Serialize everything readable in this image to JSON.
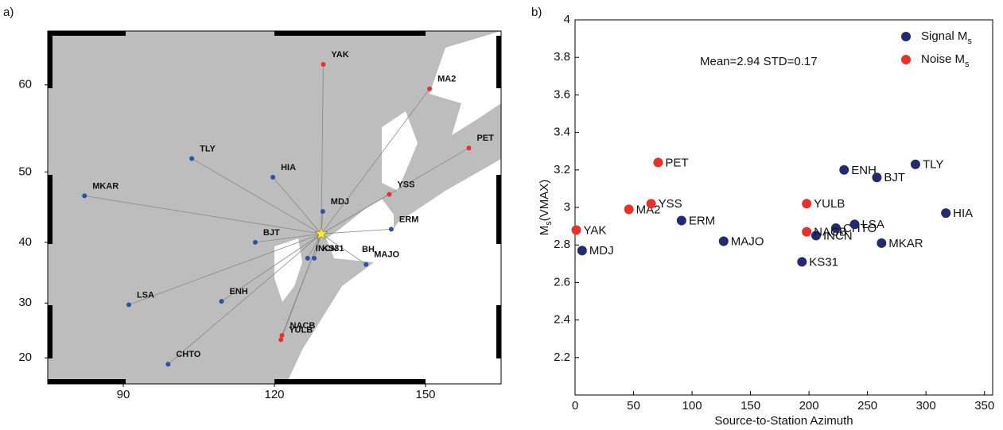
{
  "chart_data": [
    {
      "type": "map",
      "panel": "a)",
      "projection": "mercator",
      "xlim": [
        75,
        165
      ],
      "ylim": [
        15,
        65
      ],
      "xticks": [
        90,
        120,
        150
      ],
      "yticks": [
        20,
        30,
        40,
        50,
        60
      ],
      "source": {
        "lon": 129.3,
        "lat": 41.3,
        "color": "#f4e84a"
      },
      "stations": [
        {
          "name": "YAK",
          "lon": 129.7,
          "lat": 62.0,
          "color": "#e8312a"
        },
        {
          "name": "MA2",
          "lon": 150.8,
          "lat": 59.6,
          "color": "#e8312a"
        },
        {
          "name": "PET",
          "lon": 158.6,
          "lat": 53.0,
          "color": "#e8312a"
        },
        {
          "name": "TLY",
          "lon": 103.6,
          "lat": 51.7,
          "color": "#2f4fa8"
        },
        {
          "name": "HIA",
          "lon": 119.7,
          "lat": 49.3,
          "color": "#2f4fa8"
        },
        {
          "name": "MKAR",
          "lon": 82.3,
          "lat": 46.8,
          "color": "#2f4fa8"
        },
        {
          "name": "YSS",
          "lon": 142.8,
          "lat": 47.0,
          "color": "#e8312a"
        },
        {
          "name": "MDJ",
          "lon": 129.6,
          "lat": 44.6,
          "color": "#2f4fa8"
        },
        {
          "name": "ERM",
          "lon": 143.2,
          "lat": 42.0,
          "color": "#2f4fa8"
        },
        {
          "name": "BJT",
          "lon": 116.2,
          "lat": 40.0,
          "color": "#2f4fa8"
        },
        {
          "name": "INCN",
          "lon": 126.6,
          "lat": 37.5,
          "color": "#2f4fa8"
        },
        {
          "name": "KS31",
          "lon": 127.9,
          "lat": 37.5,
          "color": "#2f4fa8"
        },
        {
          "name": "MAJO",
          "lon": 138.2,
          "lat": 36.5,
          "color": "#2f4fa8"
        },
        {
          "name": "LSA",
          "lon": 91.1,
          "lat": 29.7,
          "color": "#2f4fa8"
        },
        {
          "name": "ENH",
          "lon": 109.5,
          "lat": 30.3,
          "color": "#2f4fa8"
        },
        {
          "name": "CHTO",
          "lon": 98.9,
          "lat": 18.8,
          "color": "#2f4fa8"
        },
        {
          "name": "NACB",
          "lon": 121.5,
          "lat": 24.2,
          "color": "#e8312a"
        },
        {
          "name": "YULB",
          "lon": 121.3,
          "lat": 23.4,
          "color": "#e8312a"
        }
      ],
      "annotation": "BH"
    },
    {
      "type": "scatter",
      "panel": "b)",
      "xlabel": "Source-to-Station Azimuth",
      "ylabel": [
        "M",
        "s",
        "(VMAX)"
      ],
      "annotation": "Mean=2.94 STD=0.17",
      "xlim": [
        0,
        357
      ],
      "ylim": [
        2,
        4
      ],
      "xticks": [
        0,
        50,
        100,
        150,
        200,
        250,
        300,
        350
      ],
      "yticks": [
        2.2,
        2.4,
        2.6,
        2.8,
        3,
        3.2,
        3.4,
        3.6,
        3.8,
        4
      ],
      "legend": "top-right",
      "series": [
        {
          "name": "Signal M",
          "name_sub": "s",
          "color": "#232a6e",
          "labels": [
            "MDJ",
            "ERM",
            "MAJO",
            "KS31",
            "INCN",
            "CHTO",
            "LSA",
            "ENH",
            "BJT",
            "MKAR",
            "TLY",
            "HIA"
          ],
          "x": [
            6,
            91,
            127,
            194,
            206,
            223,
            239,
            230,
            258,
            262,
            291,
            317
          ],
          "values": [
            2.77,
            2.93,
            2.82,
            2.71,
            2.85,
            2.89,
            2.91,
            3.2,
            3.16,
            2.81,
            3.23,
            2.97
          ]
        },
        {
          "name": "Noise M",
          "name_sub": "s",
          "color": "#e8312a",
          "labels": [
            "YAK",
            "MA2",
            "YSS",
            "PET",
            "YULB",
            "NACB"
          ],
          "x": [
            1,
            46,
            65,
            71,
            198,
            198
          ],
          "values": [
            2.88,
            2.99,
            3.02,
            3.24,
            3.02,
            2.87
          ]
        }
      ]
    }
  ]
}
